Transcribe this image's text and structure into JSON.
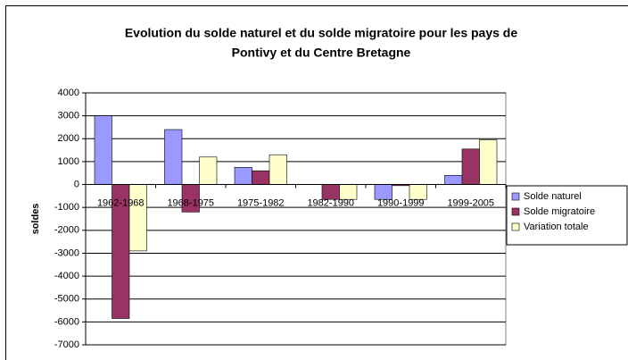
{
  "chart_data": {
    "type": "bar",
    "title": "Evolution du solde naturel et du solde migratoire pour les pays de",
    "title_line2": "Pontivy et du Centre Bretagne",
    "y_label": "soldes",
    "categories": [
      "1962-1968",
      "1968-1975",
      "1975-1982",
      "1982-1990",
      "1990-1999",
      "1999-2005"
    ],
    "series": [
      {
        "name": "Solde naturel",
        "color": "#9999ff",
        "values": [
          3000,
          2400,
          750,
          0,
          -650,
          400
        ]
      },
      {
        "name": "Solde migratoire",
        "color": "#993366",
        "values": [
          -5850,
          -1200,
          600,
          -650,
          -50,
          1550
        ]
      },
      {
        "name": "Variation totale",
        "color": "#ffffcc",
        "values": [
          -2900,
          1200,
          1300,
          -650,
          -650,
          1950
        ]
      }
    ],
    "ylim": [
      -7000,
      4000
    ],
    "yticks": [
      -7000,
      -6000,
      -5000,
      -4000,
      -3000,
      -2000,
      -1000,
      0,
      1000,
      2000,
      3000,
      4000
    ],
    "grid": true,
    "legend": "right"
  }
}
